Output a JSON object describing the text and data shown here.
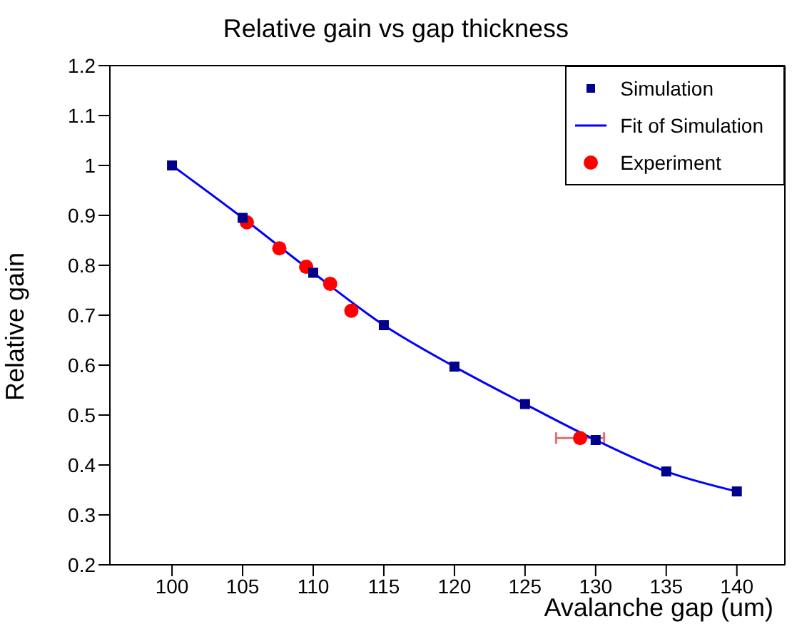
{
  "chart_data": {
    "type": "scatter",
    "title": "Relative gain vs gap thickness",
    "xlabel": "Avalanche gap (um)",
    "ylabel": "Relative gain",
    "xlim": [
      95.6,
      143.4
    ],
    "xticks": [
      100,
      105,
      110,
      115,
      120,
      125,
      130,
      135,
      140
    ],
    "ylim": [
      0.2,
      1.2
    ],
    "yticks": [
      0.2,
      0.3,
      0.4,
      0.5,
      0.6,
      0.7,
      0.8,
      0.9,
      1,
      1.1,
      1.2
    ],
    "grid": false,
    "legend": "top right",
    "series": [
      {
        "name": "Simulation",
        "marker": "square",
        "color": "#00008b",
        "x": [
          100,
          105,
          110,
          115,
          120,
          125,
          130,
          135,
          140
        ],
        "values": [
          1.0,
          0.895,
          0.785,
          0.68,
          0.597,
          0.522,
          0.45,
          0.387,
          0.347
        ]
      },
      {
        "name": "Fit of Simulation",
        "type": "line",
        "marker": "none",
        "line_style": "solid",
        "color": "#0000ff",
        "x": [
          100,
          105,
          110,
          115,
          120,
          125,
          130,
          135,
          140
        ],
        "values": [
          1.0,
          0.895,
          0.785,
          0.68,
          0.597,
          0.522,
          0.45,
          0.387,
          0.347
        ]
      },
      {
        "name": "Experiment",
        "marker": "circle",
        "color": "#ff0000",
        "x": [
          105.3,
          107.6,
          109.5,
          111.2,
          112.7,
          128.9
        ],
        "values": [
          0.886,
          0.834,
          0.797,
          0.763,
          0.709,
          0.454
        ],
        "xerrors": [
          null,
          null,
          null,
          null,
          null,
          1.7
        ]
      }
    ]
  }
}
